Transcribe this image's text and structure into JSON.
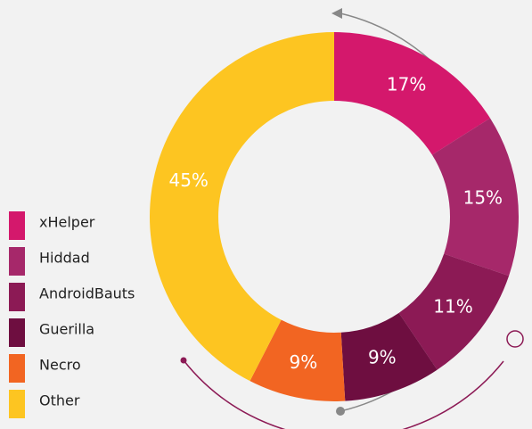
{
  "chart_data": {
    "type": "pie",
    "categories": [
      "xHelper",
      "Hiddad",
      "AndroidBauts",
      "Guerilla",
      "Necro",
      "Other"
    ],
    "values": [
      17,
      15,
      11,
      9,
      9,
      45
    ],
    "value_labels": [
      "17%",
      "15%",
      "11%",
      "9%",
      "9%",
      "45%"
    ],
    "colors": [
      "#d4186c",
      "#a6286a",
      "#8c1a55",
      "#6e0e40",
      "#f26522",
      "#fdc521"
    ],
    "legend": "left"
  }
}
